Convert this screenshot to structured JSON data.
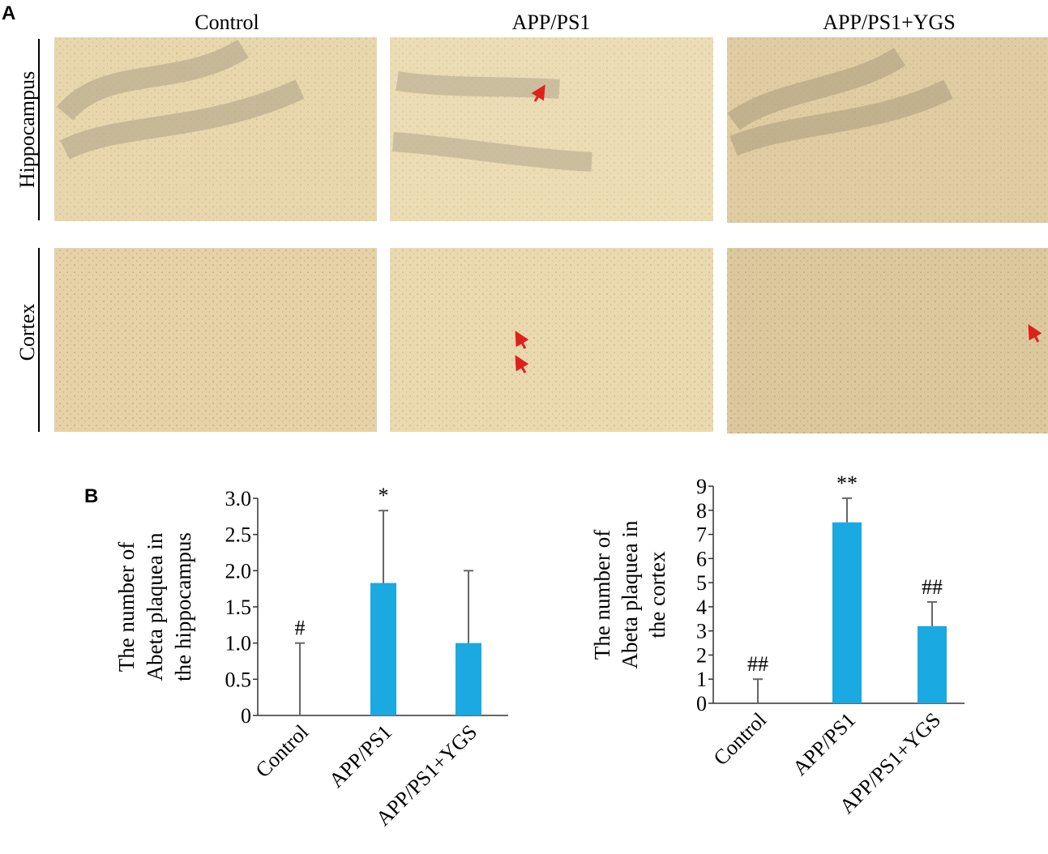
{
  "panel_a": {
    "label": "A",
    "columns": [
      "Control",
      "APP/PS1",
      "APP/PS1+YGS"
    ],
    "rows": [
      "Hippocampus",
      "Cortex"
    ]
  },
  "panel_b": {
    "label": "B"
  },
  "chart_data": [
    {
      "type": "bar",
      "ylabel_lines": [
        "The number of",
        "Abeta plaquea in",
        "the hippocampus"
      ],
      "categories": [
        "Control",
        "APP/PS1",
        "APP/PS1+YGS"
      ],
      "values": [
        0,
        1.83,
        1.0
      ],
      "errors": [
        1.0,
        1.0,
        1.0
      ],
      "annotations": [
        "#",
        "*",
        null
      ],
      "color": "#1ba9e1",
      "ylim": [
        0,
        3
      ],
      "yticks": [
        0,
        0.5,
        {
          "value": 1,
          "label": "1.0"
        },
        1.5,
        {
          "value": 2,
          "label": "2.0"
        },
        2.5,
        {
          "value": 3,
          "label": "3.0"
        }
      ]
    },
    {
      "type": "bar",
      "ylabel_lines": [
        "The number of",
        "Abeta plaquea in",
        "the cortex"
      ],
      "categories": [
        "Control",
        "APP/PS1",
        "APP/PS1+YGS"
      ],
      "values": [
        0,
        7.5,
        3.2
      ],
      "errors": [
        1.0,
        1.0,
        1.0
      ],
      "annotations": [
        "##",
        "**",
        "##"
      ],
      "color": "#1ba9e1",
      "ylim": [
        0,
        9
      ],
      "yticks": [
        0,
        1,
        2,
        3,
        4,
        5,
        6,
        7,
        8,
        9
      ]
    }
  ]
}
